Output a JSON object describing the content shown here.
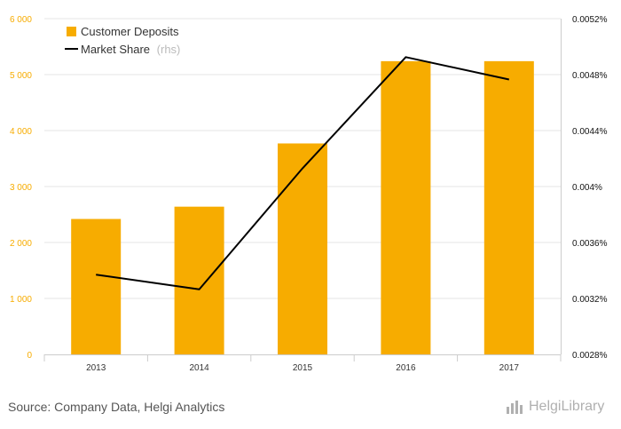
{
  "chart_data": {
    "type": "bar+line",
    "categories": [
      "2013",
      "2014",
      "2015",
      "2016",
      "2017"
    ],
    "series": [
      {
        "name": "Customer Deposits",
        "type": "bar",
        "axis": "left",
        "color": "#f7ac00",
        "values": [
          2420,
          2640,
          3770,
          5240,
          5240
        ]
      },
      {
        "name": "Market Share",
        "name_suffix": "(rhs)",
        "type": "line",
        "axis": "right",
        "color": "#000000",
        "values": [
          0.00337,
          0.003265,
          0.00413,
          0.004925,
          0.004765
        ]
      }
    ],
    "left_axis": {
      "ylim": [
        0,
        6000
      ],
      "ticks": [
        0,
        1000,
        2000,
        3000,
        4000,
        5000,
        6000
      ],
      "tick_labels": [
        "0",
        "1 000",
        "2 000",
        "3 000",
        "4 000",
        "5 000",
        "6 000"
      ],
      "color": "#f7ac00"
    },
    "right_axis": {
      "ylim": [
        0.0028,
        0.0052
      ],
      "ticks": [
        0.0028,
        0.0032,
        0.0036,
        0.004,
        0.0044,
        0.0048,
        0.0052
      ],
      "tick_labels": [
        "0.0028%",
        "0.0032%",
        "0.0036%",
        "0.004%",
        "0.0044%",
        "0.0048%",
        "0.0052%"
      ]
    },
    "legend": {
      "placement": "top-left"
    },
    "grid": true
  },
  "footer": {
    "source": "Source: Company Data, Helgi Analytics",
    "logo_text": "HelgiLibrary"
  }
}
